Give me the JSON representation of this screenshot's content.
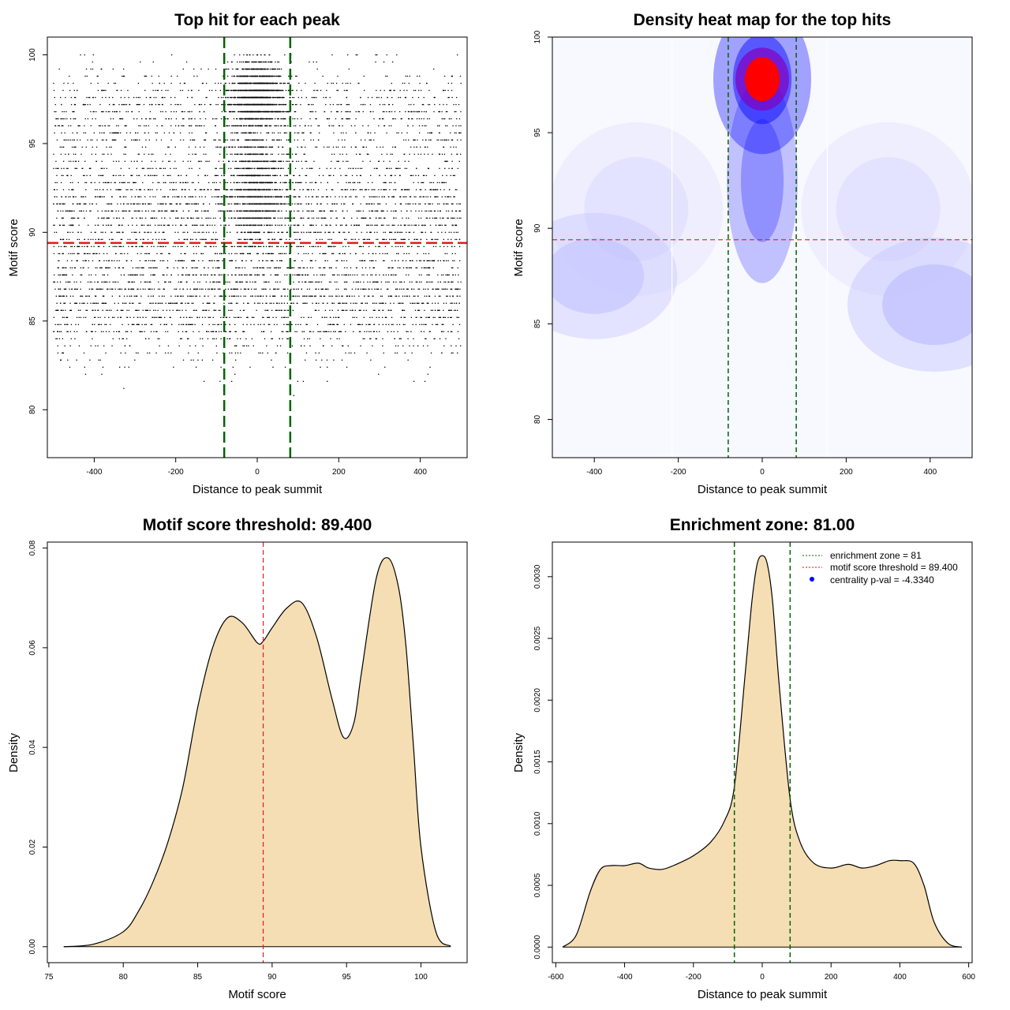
{
  "chart_data": [
    {
      "type": "scatter",
      "title": "Top hit for each peak",
      "xlabel": "Distance to peak summit",
      "ylabel": "Motif score",
      "xlim": [
        -515,
        515
      ],
      "ylim": [
        77.3,
        101
      ],
      "xticks": [
        -400,
        -200,
        0,
        200,
        400
      ],
      "yticks": [
        80,
        85,
        90,
        95,
        100
      ],
      "threshold_score": 89.4,
      "zone_bounds": [
        -81,
        81
      ],
      "point_summary": {
        "count_approx": 9000,
        "x_range": [
          -500,
          500
        ],
        "y_range": [
          78,
          100
        ],
        "density_peak": {
          "x": 0,
          "y": 98
        },
        "note_score_levels_discrete": true
      }
    },
    {
      "type": "heatmap",
      "title": "Density heat map for the top hits",
      "xlabel": "Distance to peak summit",
      "ylabel": "Motif score",
      "xlim": [
        -500,
        500
      ],
      "ylim": [
        78,
        100
      ],
      "xticks": [
        -400,
        -200,
        0,
        200,
        400
      ],
      "yticks": [
        80,
        85,
        90,
        95,
        100
      ],
      "threshold_score": 89.4,
      "zone_bounds": [
        -81,
        81
      ],
      "colors": [
        "#ffffff",
        "#0000ff",
        "#ff0000"
      ],
      "hotspots": [
        {
          "x": 0,
          "y": 97.8,
          "intensity": 1.0
        },
        {
          "x": 0,
          "y": 92.5,
          "intensity": 0.45
        },
        {
          "x": -400,
          "y": 87.5,
          "intensity": 0.18
        },
        {
          "x": 410,
          "y": 86.0,
          "intensity": 0.2
        },
        {
          "x": -300,
          "y": 91.0,
          "intensity": 0.12
        },
        {
          "x": 300,
          "y": 91.0,
          "intensity": 0.12
        }
      ]
    },
    {
      "type": "area",
      "title": "Motif score threshold: 89.400",
      "xlabel": "Motif score",
      "ylabel": "Density",
      "xlim": [
        74.9,
        103.1
      ],
      "ylim": [
        -0.0032,
        0.0812
      ],
      "xticks": [
        75,
        80,
        85,
        90,
        95,
        100
      ],
      "yticks": [
        "0.00",
        "0.02",
        "0.04",
        "0.06",
        "0.08"
      ],
      "threshold_score": 89.4,
      "fill_color": "#f5deb3",
      "x": [
        76,
        78,
        80,
        81,
        82,
        83,
        84,
        85,
        86,
        87,
        88,
        89,
        89.4,
        90,
        91,
        92,
        93,
        94,
        94.8,
        95.5,
        96,
        97,
        97.8,
        98.5,
        99,
        99.5,
        100,
        101,
        102
      ],
      "y": [
        0,
        0.0005,
        0.003,
        0.007,
        0.013,
        0.021,
        0.032,
        0.048,
        0.06,
        0.066,
        0.065,
        0.061,
        0.0613,
        0.064,
        0.068,
        0.069,
        0.062,
        0.05,
        0.042,
        0.045,
        0.055,
        0.074,
        0.078,
        0.072,
        0.06,
        0.04,
        0.02,
        0.003,
        0.0001
      ]
    },
    {
      "type": "area",
      "title": "Enrichment zone: 81.00",
      "xlabel": "Distance to peak summit",
      "ylabel": "Density",
      "xlim": [
        -610,
        610
      ],
      "ylim": [
        -0.000126,
        0.00328
      ],
      "xticks": [
        -600,
        -400,
        -200,
        0,
        200,
        400,
        600
      ],
      "yticks": [
        "0.0000",
        "0.0005",
        "0.0010",
        "0.0015",
        "0.0020",
        "0.0025",
        "0.0030"
      ],
      "zone_bounds": [
        -81,
        81
      ],
      "fill_color": "#f5deb3",
      "x": [
        -580,
        -540,
        -500,
        -470,
        -440,
        -400,
        -360,
        -330,
        -290,
        -250,
        -200,
        -150,
        -110,
        -81,
        -50,
        -30,
        -15,
        0,
        15,
        30,
        50,
        81,
        110,
        150,
        200,
        250,
        290,
        330,
        370,
        400,
        440,
        470,
        500,
        540,
        580
      ],
      "y": [
        0,
        0.0001,
        0.00045,
        0.00063,
        0.00066,
        0.00066,
        0.00068,
        0.00064,
        0.00063,
        0.00067,
        0.00074,
        0.00085,
        0.00102,
        0.0013,
        0.0022,
        0.0028,
        0.0031,
        0.00317,
        0.0031,
        0.0028,
        0.0021,
        0.0012,
        0.00085,
        0.00068,
        0.00064,
        0.00067,
        0.00064,
        0.00066,
        0.0007,
        0.0007,
        0.00068,
        0.0005,
        0.0002,
        3e-05,
        0
      ],
      "legend": {
        "placement": "top-right",
        "entries": [
          {
            "label": "enrichment zone = 81",
            "color": "#006400",
            "style": "dotted-line"
          },
          {
            "label": "motif score threshold = 89.400",
            "color": "#ff0000",
            "style": "dotted-line"
          },
          {
            "label": "centrality p-val = -4.3340",
            "color": "#0000ff",
            "style": "point"
          }
        ]
      }
    }
  ]
}
